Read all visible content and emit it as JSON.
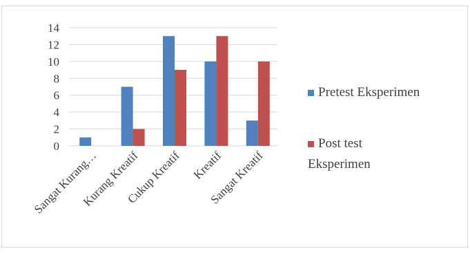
{
  "chart_data": {
    "type": "bar",
    "categories": [
      "Sangat Kurang…",
      "Kurang Kreatif",
      "Cukup Kreatif",
      "Kreatif",
      "Sangat Kreatif"
    ],
    "series": [
      {
        "name": "Pretest Eksperimen",
        "color": "#4f81bd",
        "values": [
          1,
          7,
          13,
          10,
          3
        ]
      },
      {
        "name": "Post test Eksperimen",
        "color": "#c0504d",
        "values": [
          0,
          2,
          9,
          13,
          10
        ]
      }
    ],
    "yticks": [
      "0",
      "2",
      "4",
      "6",
      "8",
      "10",
      "12",
      "14"
    ],
    "ylim": [
      0,
      14
    ],
    "grid": true,
    "legend_position": "right",
    "legend_lines": [
      [
        "Pretest Eksperimen"
      ],
      [
        "Post test",
        "Eksperimen"
      ]
    ]
  }
}
